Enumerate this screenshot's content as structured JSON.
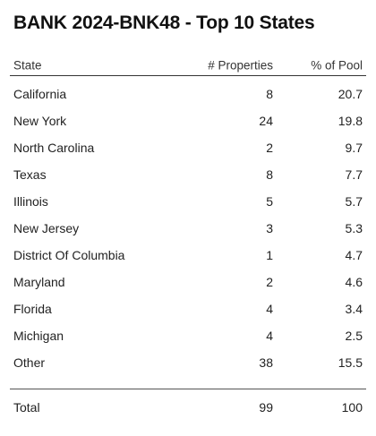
{
  "chart_data": {
    "type": "table",
    "title": "BANK 2024-BNK48 - Top 10 States",
    "columns": [
      "State",
      "# Properties",
      "% of Pool"
    ],
    "rows": [
      {
        "state": "California",
        "properties": "8",
        "pool": "20.7"
      },
      {
        "state": "New York",
        "properties": "24",
        "pool": "19.8"
      },
      {
        "state": "North Carolina",
        "properties": "2",
        "pool": "9.7"
      },
      {
        "state": "Texas",
        "properties": "8",
        "pool": "7.7"
      },
      {
        "state": "Illinois",
        "properties": "5",
        "pool": "5.7"
      },
      {
        "state": "New Jersey",
        "properties": "3",
        "pool": "5.3"
      },
      {
        "state": "District Of Columbia",
        "properties": "1",
        "pool": "4.7"
      },
      {
        "state": "Maryland",
        "properties": "2",
        "pool": "4.6"
      },
      {
        "state": "Florida",
        "properties": "4",
        "pool": "3.4"
      },
      {
        "state": "Michigan",
        "properties": "4",
        "pool": "2.5"
      },
      {
        "state": "Other",
        "properties": "38",
        "pool": "15.5"
      }
    ],
    "total": {
      "label": "Total",
      "properties": "99",
      "pool": "100"
    }
  }
}
